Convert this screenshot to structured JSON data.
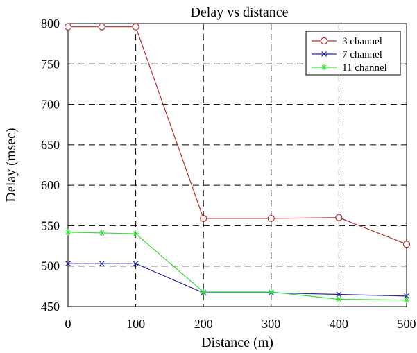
{
  "chart_data": {
    "type": "line",
    "title": "Delay vs distance",
    "xlabel": "Distance (m)",
    "ylabel": "Delay (msec)",
    "xlim": [
      0,
      500
    ],
    "ylim": [
      450,
      800
    ],
    "xticks": [
      0,
      100,
      200,
      300,
      400,
      500
    ],
    "yticks": [
      450,
      500,
      550,
      600,
      650,
      700,
      750,
      800
    ],
    "grid": true,
    "legend_position": "top-right",
    "series": [
      {
        "name": "3 channel",
        "color": "#b03030",
        "marker": "circle",
        "x": [
          0,
          50,
          100,
          200,
          300,
          400,
          500
        ],
        "y": [
          796,
          796,
          796,
          559,
          559,
          560,
          527
        ]
      },
      {
        "name": "7 channel",
        "color": "#2a2aa0",
        "marker": "x",
        "x": [
          0,
          50,
          100,
          200,
          300,
          400,
          500
        ],
        "y": [
          503,
          503,
          503,
          467,
          467,
          465,
          463
        ]
      },
      {
        "name": "11 channel",
        "color": "#33dd33",
        "marker": "star",
        "x": [
          0,
          50,
          100,
          200,
          300,
          400,
          500
        ],
        "y": [
          542,
          541,
          540,
          468,
          468,
          459,
          458
        ]
      }
    ]
  }
}
